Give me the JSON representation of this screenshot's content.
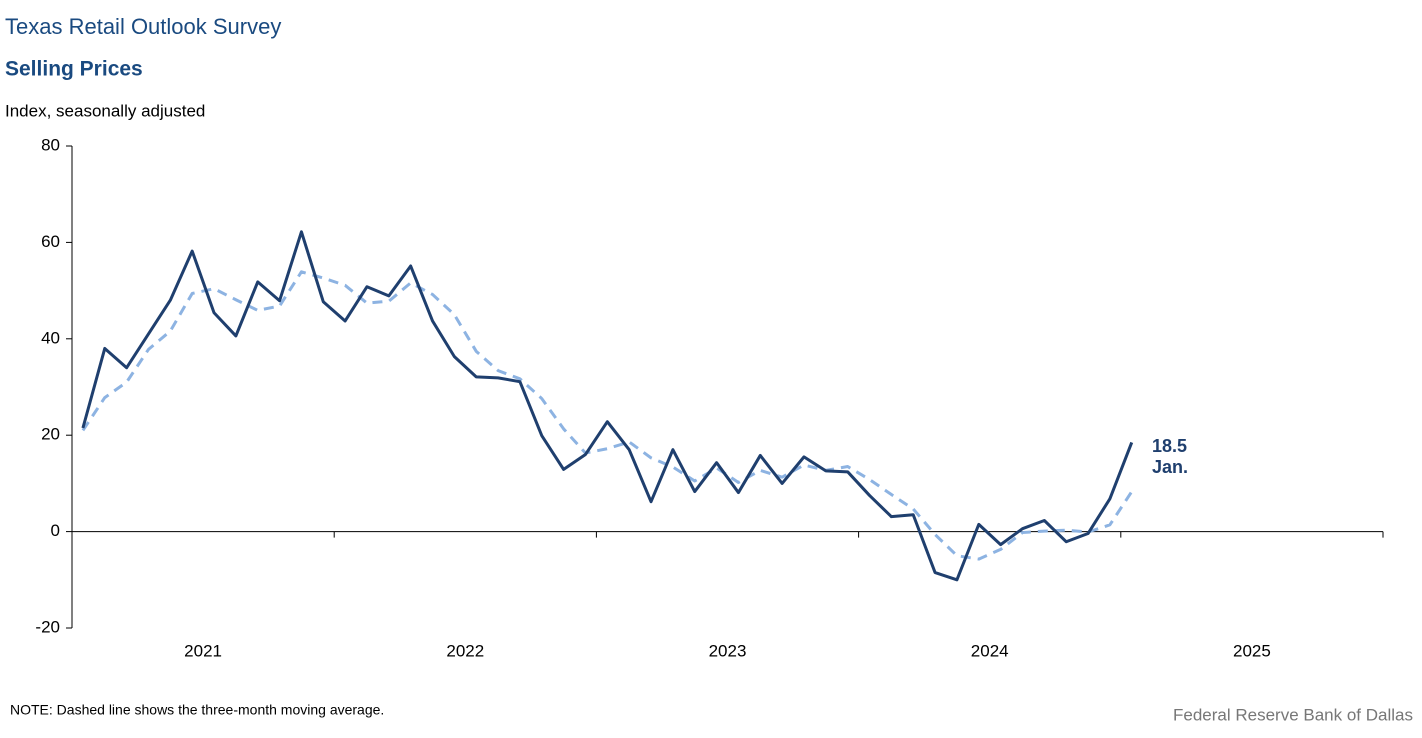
{
  "chart_data": {
    "type": "line",
    "title": "Texas Retail Outlook Survey",
    "subtitle": "Selling Prices",
    "y_axis_label": "Index, seasonally adjusted",
    "note": "NOTE: Dashed line shows the three-month  moving average.",
    "source": "Federal Reserve Bank of Dallas",
    "annotations": [
      "18.5",
      "Jan."
    ],
    "x": [
      "2021-01",
      "2021-02",
      "2021-03",
      "2021-04",
      "2021-05",
      "2021-06",
      "2021-07",
      "2021-08",
      "2021-09",
      "2021-10",
      "2021-11",
      "2021-12",
      "2022-01",
      "2022-02",
      "2022-03",
      "2022-04",
      "2022-05",
      "2022-06",
      "2022-07",
      "2022-08",
      "2022-09",
      "2022-10",
      "2022-11",
      "2022-12",
      "2023-01",
      "2023-02",
      "2023-03",
      "2023-04",
      "2023-05",
      "2023-06",
      "2023-07",
      "2023-08",
      "2023-09",
      "2023-10",
      "2023-11",
      "2023-12",
      "2024-01",
      "2024-02",
      "2024-03",
      "2024-04",
      "2024-05",
      "2024-06",
      "2024-07",
      "2024-08",
      "2024-09",
      "2024-10",
      "2024-11",
      "2024-12",
      "2025-01"
    ],
    "series": [
      {
        "name": "Selling prices index",
        "color": "#1f3f6e",
        "dashed": false,
        "values": [
          21.5,
          38,
          34,
          41,
          48,
          58.2,
          45.4,
          40.6,
          51.8,
          47.9,
          62.2,
          47.7,
          43.7,
          50.8,
          48.9,
          55.1,
          43.7,
          36.3,
          32.1,
          31.9,
          31.1,
          19.9,
          12.9,
          16,
          22.8,
          17,
          6.2,
          17,
          8.3,
          14.3,
          8.1,
          15.8,
          10,
          15.5,
          12.6,
          12.4,
          7.5,
          3.1,
          3.5,
          -8.5,
          -10,
          1.5,
          -2.7,
          0.6,
          2.3,
          -2.1,
          -0.4,
          6.8,
          18.5
        ]
      },
      {
        "name": "Three-month moving average",
        "color": "#8db3e2",
        "dashed": true,
        "values": [
          21,
          27.8,
          31,
          37.8,
          41.6,
          49.4,
          50.4,
          48.1,
          45.9,
          46.8,
          53.9,
          52.6,
          51.1,
          47.4,
          47.8,
          51.6,
          49.2,
          45,
          37.4,
          33.4,
          31.7,
          27.6,
          21.3,
          16.3,
          17.2,
          18.6,
          15.3,
          13.4,
          10.5,
          13.2,
          10.2,
          12.7,
          11.3,
          13.8,
          12.7,
          13.5,
          10.8,
          7.7,
          4.7,
          -0.6,
          -5,
          -5.7,
          -3.7,
          -0.2,
          0.1,
          0.3,
          -0.1,
          1.4,
          8.3
        ]
      }
    ],
    "xlim": [
      "2021-01",
      "2025-12"
    ],
    "xticks": [
      2021,
      2022,
      2023,
      2024,
      2025
    ],
    "ylim": [
      -20,
      80
    ],
    "yticks": [
      -20,
      0,
      20,
      40,
      60,
      80
    ],
    "grid": false
  }
}
